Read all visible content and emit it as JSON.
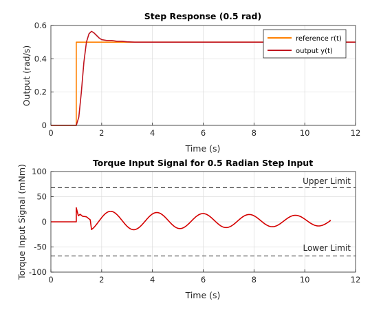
{
  "chart_data": [
    {
      "type": "line",
      "title": "Step Response (0.5 rad)",
      "xlabel": "Time (s)",
      "ylabel": "Output (rad/s)",
      "xlim": [
        0,
        12
      ],
      "ylim": [
        0,
        0.6
      ],
      "xticks": [
        "0",
        "2",
        "4",
        "6",
        "8",
        "10",
        "12"
      ],
      "yticks": [
        "0",
        "0.2",
        "0.4",
        "0.6"
      ],
      "grid": true,
      "legend_position": "top-right",
      "series": [
        {
          "name": "reference r(t)",
          "color": "#ff8000",
          "points": [
            [
              0,
              0
            ],
            [
              1,
              0
            ],
            [
              1,
              0.5
            ],
            [
              12,
              0.5
            ]
          ]
        },
        {
          "name": "output y(t)",
          "color": "#c0141e",
          "points": [
            [
              0,
              0
            ],
            [
              1.0,
              0
            ],
            [
              1.1,
              0.05
            ],
            [
              1.2,
              0.2
            ],
            [
              1.3,
              0.38
            ],
            [
              1.4,
              0.5
            ],
            [
              1.5,
              0.55
            ],
            [
              1.6,
              0.565
            ],
            [
              1.7,
              0.555
            ],
            [
              1.8,
              0.54
            ],
            [
              1.9,
              0.525
            ],
            [
              2.0,
              0.515
            ],
            [
              2.2,
              0.51
            ],
            [
              2.4,
              0.51
            ],
            [
              2.6,
              0.505
            ],
            [
              2.8,
              0.505
            ],
            [
              3.0,
              0.502
            ],
            [
              3.3,
              0.5
            ],
            [
              12,
              0.5
            ]
          ]
        }
      ]
    },
    {
      "type": "line",
      "title": "Torque Input Signal for 0.5 Radian Step Input",
      "xlabel": "Time (s)",
      "ylabel": "Torque Input Signal (mNm)",
      "xlim": [
        0,
        12
      ],
      "ylim": [
        -100,
        100
      ],
      "xticks": [
        "0",
        "2",
        "4",
        "6",
        "8",
        "10",
        "12"
      ],
      "yticks": [
        "-100",
        "-50",
        "0",
        "50",
        "100"
      ],
      "grid": true,
      "series": [
        {
          "color": "#d40000",
          "decay_to": 11.0
        }
      ],
      "limits": [
        {
          "label": "Upper Limit",
          "value": 68,
          "color": "#333333"
        },
        {
          "label": "Lower Limit",
          "value": -68,
          "color": "#333333"
        }
      ]
    }
  ]
}
